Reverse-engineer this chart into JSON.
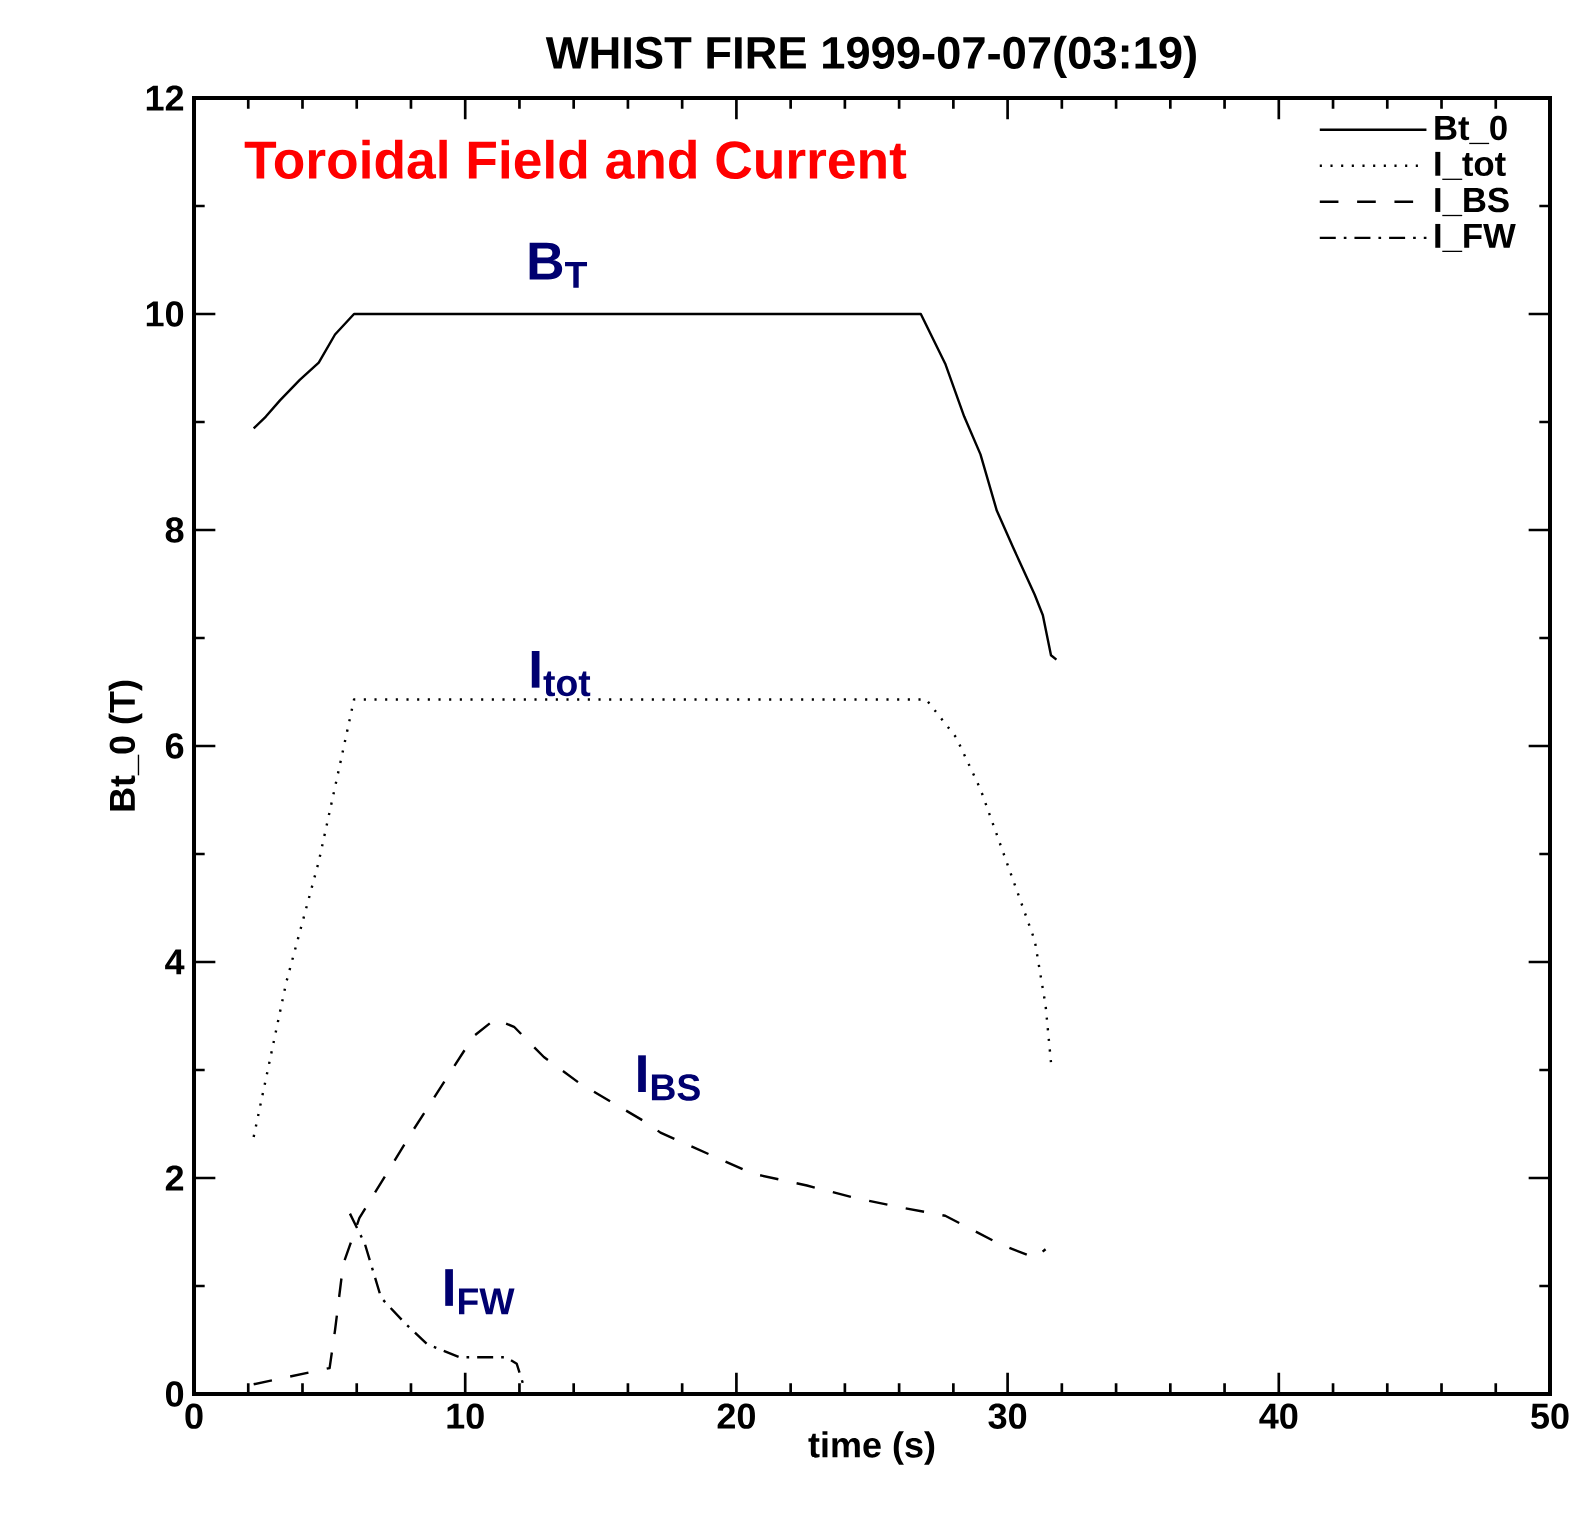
{
  "chart_data": {
    "type": "line",
    "title": "WHIST  FIRE 1999-07-07(03:19)",
    "xlabel": "time (s)",
    "ylabel": "Bt_0 (T)",
    "xlim": [
      0,
      50
    ],
    "xticks": [
      0,
      10,
      20,
      30,
      40,
      50
    ],
    "ylim": [
      0,
      12
    ],
    "yticks": [
      0,
      2,
      4,
      6,
      8,
      10,
      12
    ],
    "legend": "top right",
    "grid": false,
    "marker": "none",
    "annotations": [
      "Toroidal Field and Current",
      "B$_{T}$",
      "I$_{tot}$",
      "I$_{BS}$",
      "I$_{FW}$"
    ],
    "series": [
      {
        "name": "Bt_0",
        "color": "#000000",
        "line_style": "solid",
        "x": [
          2.2,
          2.65,
          3.17,
          3.9,
          4.6,
          5.2,
          5.9,
          26.8,
          27.7,
          28.4,
          29.0,
          29.6,
          30.2,
          31.0,
          31.3,
          31.6,
          31.8
        ],
        "values": [
          8.94,
          9.05,
          9.2,
          9.39,
          9.55,
          9.81,
          10.0,
          10.0,
          9.54,
          9.05,
          8.7,
          8.18,
          7.84,
          7.4,
          7.21,
          6.84,
          6.8
        ]
      },
      {
        "name": "I_tot",
        "color": "#000000",
        "line_style": "dotted",
        "x": [
          2.2,
          3.4,
          4.6,
          5.4,
          5.9,
          27.0,
          28.1,
          29.0,
          30.0,
          31.0,
          31.4,
          31.6
        ],
        "values": [
          2.38,
          3.81,
          4.93,
          5.85,
          6.43,
          6.43,
          6.08,
          5.6,
          4.9,
          4.2,
          3.6,
          3.07
        ]
      },
      {
        "name": "I_BS",
        "color": "#000000",
        "line_style": "dashed",
        "x": [
          2.2,
          5.0,
          5.2,
          5.5,
          6.1,
          8.1,
          10.3,
          11.1,
          11.8,
          12.9,
          14.2,
          16.7,
          17.2,
          20.6,
          22.6,
          24.3,
          26.0,
          27.7,
          29.7,
          31.0,
          31.4
        ],
        "values": [
          0.09,
          0.24,
          0.59,
          1.2,
          1.63,
          2.45,
          3.31,
          3.47,
          3.4,
          3.12,
          2.88,
          2.51,
          2.42,
          2.04,
          1.93,
          1.82,
          1.73,
          1.65,
          1.39,
          1.26,
          1.34
        ]
      },
      {
        "name": "I_FW",
        "color": "#000000",
        "line_style": "dashdot",
        "x": [
          5.75,
          6.3,
          6.9,
          7.8,
          8.6,
          9.8,
          11.5,
          11.9,
          12.2
        ],
        "values": [
          1.67,
          1.39,
          0.89,
          0.65,
          0.46,
          0.34,
          0.34,
          0.28,
          0.04
        ]
      }
    ]
  }
}
